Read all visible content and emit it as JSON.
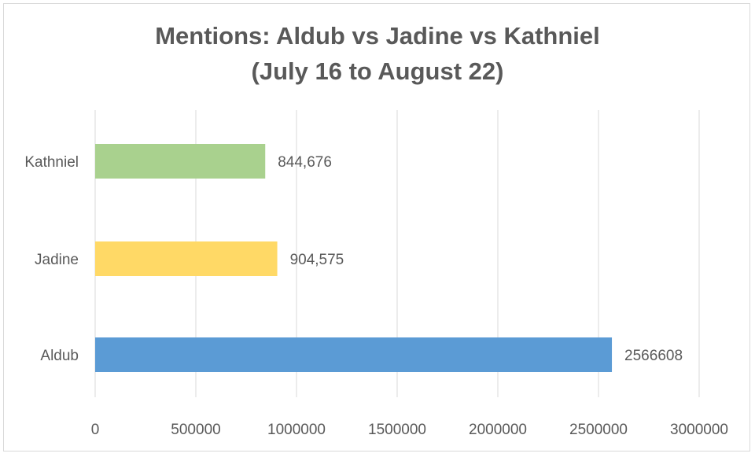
{
  "chart_data": {
    "type": "bar",
    "orientation": "horizontal",
    "title_lines": [
      "Mentions: Aldub vs Jadine vs Kathniel",
      "(July 16 to August 22)"
    ],
    "xlabel": "",
    "ylabel": "",
    "xlim": [
      0,
      3000000
    ],
    "x_ticks": [
      0,
      500000,
      1000000,
      1500000,
      2000000,
      2500000,
      3000000
    ],
    "x_tick_labels": [
      "0",
      "500000",
      "1000000",
      "1500000",
      "2000000",
      "2500000",
      "3000000"
    ],
    "grid": "vertical",
    "legend": "none",
    "categories": [
      "Kathniel",
      "Jadine",
      "Aldub"
    ],
    "values": [
      844676,
      904575,
      2566608
    ],
    "data_labels": [
      "844,676",
      "904,575",
      "2566608"
    ],
    "colors": [
      "#a9d18e",
      "#ffd966",
      "#5b9bd5"
    ],
    "gridline_color": "#d9d9d9",
    "text_color": "#595959"
  }
}
